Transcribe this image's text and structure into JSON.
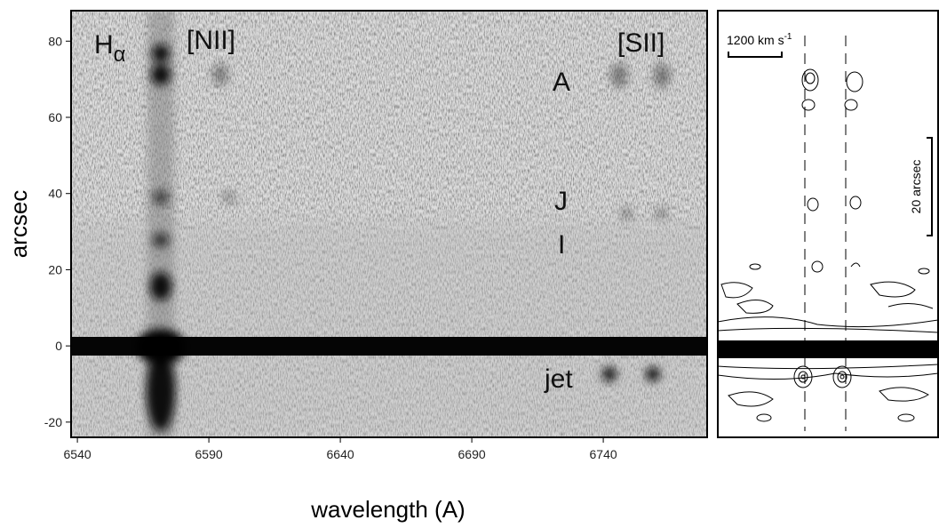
{
  "chart_data": {
    "type": "spectrum-image",
    "xlabel": "wavelength (A)",
    "ylabel": "arcsec",
    "xlim": [
      6537.6,
      6779.5
    ],
    "ylim": [
      -24,
      88
    ],
    "xticks": [
      6540,
      6590,
      6640,
      6690,
      6740
    ],
    "yticks": [
      -20,
      0,
      20,
      40,
      60,
      80
    ],
    "line_labels": {
      "halpha": "H",
      "halpha_sub": "α",
      "nii": "[NII]",
      "sii": "[SII]"
    },
    "knot_labels": [
      "A",
      "J",
      "I",
      "jet"
    ],
    "inset": {
      "velocity_scale": "1200 km s",
      "velocity_scale_sup": "-1",
      "spatial_scale": "20 arcsec"
    }
  }
}
